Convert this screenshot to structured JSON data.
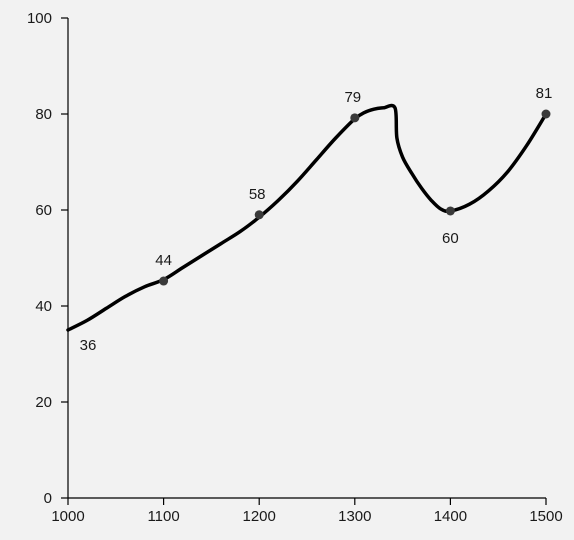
{
  "chart_data": {
    "type": "line",
    "title": "",
    "xlabel": "",
    "ylabel": "",
    "xlim": [
      1000,
      1500
    ],
    "ylim": [
      0,
      100
    ],
    "x_ticks": [
      1000,
      1100,
      1200,
      1300,
      1400,
      1500
    ],
    "y_ticks": [
      0,
      20,
      40,
      60,
      80,
      100
    ],
    "grid": false,
    "legend": "none",
    "line_color": "#000000",
    "series": [
      {
        "x": [
          1000,
          1100,
          1200,
          1300,
          1400,
          1500
        ],
        "values": [
          36,
          44,
          58,
          79,
          60,
          81
        ],
        "labels": [
          "36",
          "44",
          "58",
          "79",
          "60",
          "81"
        ]
      }
    ],
    "curve": {
      "x": [
        1000,
        1020,
        1040,
        1060,
        1080,
        1100,
        1120,
        1140,
        1160,
        1180,
        1200,
        1220,
        1240,
        1260,
        1280,
        1300,
        1310,
        1320,
        1330,
        1342,
        1344,
        1350,
        1360,
        1370,
        1380,
        1390,
        1400,
        1420,
        1440,
        1460,
        1480,
        1500
      ],
      "y": [
        35,
        37,
        39.5,
        42,
        44,
        45.5,
        48,
        50.5,
        53,
        55.5,
        58.5,
        62,
        66,
        70.5,
        75,
        79,
        80.3,
        81,
        81.3,
        81.3,
        75,
        71,
        67.5,
        64.5,
        62,
        60.2,
        59.8,
        61.2,
        64,
        68,
        73.5,
        80
      ]
    },
    "markers": {
      "x": [
        1100,
        1200,
        1300,
        1400,
        1500
      ],
      "y": [
        45.2,
        59,
        79.2,
        59.8,
        80
      ]
    }
  }
}
